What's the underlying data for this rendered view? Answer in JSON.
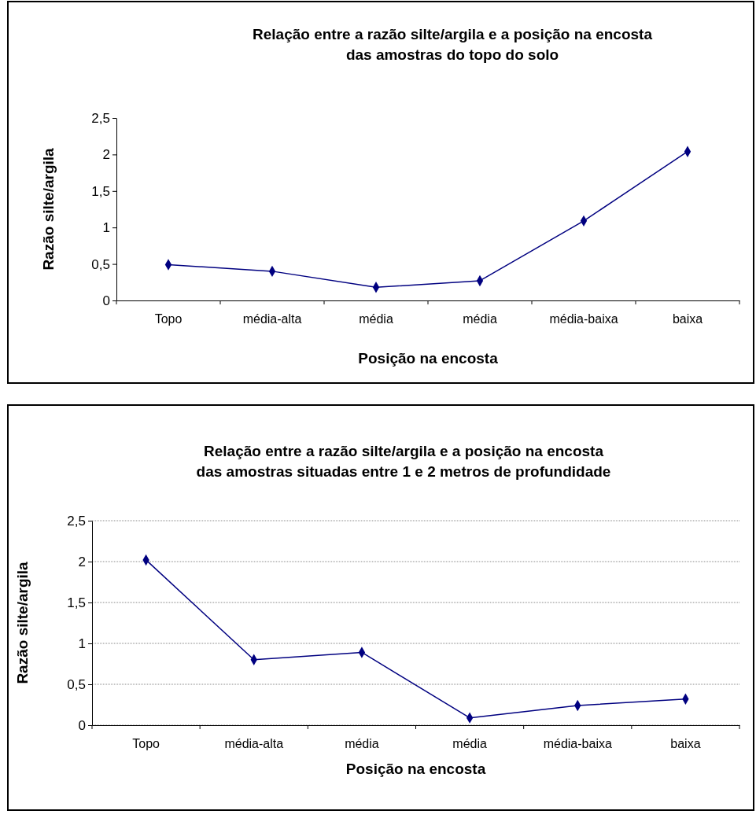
{
  "chart_data": [
    {
      "type": "line",
      "title": "Relação entre a razão silte/argila e a posição na encosta\ndas amostras do topo do solo",
      "xlabel": "Posição na encosta",
      "ylabel": "Razão silte/argila",
      "categories": [
        "Topo",
        "média-alta",
        "média",
        "média",
        "média-baixa",
        "baixa"
      ],
      "series": [
        {
          "color": "#000080",
          "values": [
            0.49,
            0.4,
            0.18,
            0.27,
            1.09,
            2.04
          ]
        }
      ],
      "ylim": [
        0,
        2.5
      ],
      "yticks": [
        0,
        {
          "value": 0.5,
          "label": "0,5"
        },
        1,
        {
          "value": 1.5,
          "label": "1,5"
        },
        2,
        {
          "value": 2.5,
          "label": "2,5"
        }
      ],
      "grid": false,
      "marker": "diamond"
    },
    {
      "type": "line",
      "title": "Relação entre a razão silte/argila e a posição na encosta\ndas amostras situadas entre 1 e 2 metros de profundidade",
      "xlabel": "Posição na encosta",
      "ylabel": "Razão silte/argila",
      "categories": [
        "Topo",
        "média-alta",
        "média",
        "média",
        "média-baixa",
        "baixa"
      ],
      "series": [
        {
          "color": "#000080",
          "values": [
            2.02,
            0.8,
            0.89,
            0.09,
            0.24,
            0.32
          ]
        }
      ],
      "ylim": [
        0,
        2.5
      ],
      "yticks": [
        0,
        {
          "value": 0.5,
          "label": "0,5"
        },
        1,
        {
          "value": 1.5,
          "label": "1,5"
        },
        2,
        {
          "value": 2.5,
          "label": "2,5"
        }
      ],
      "grid": "y",
      "marker": "diamond"
    }
  ]
}
